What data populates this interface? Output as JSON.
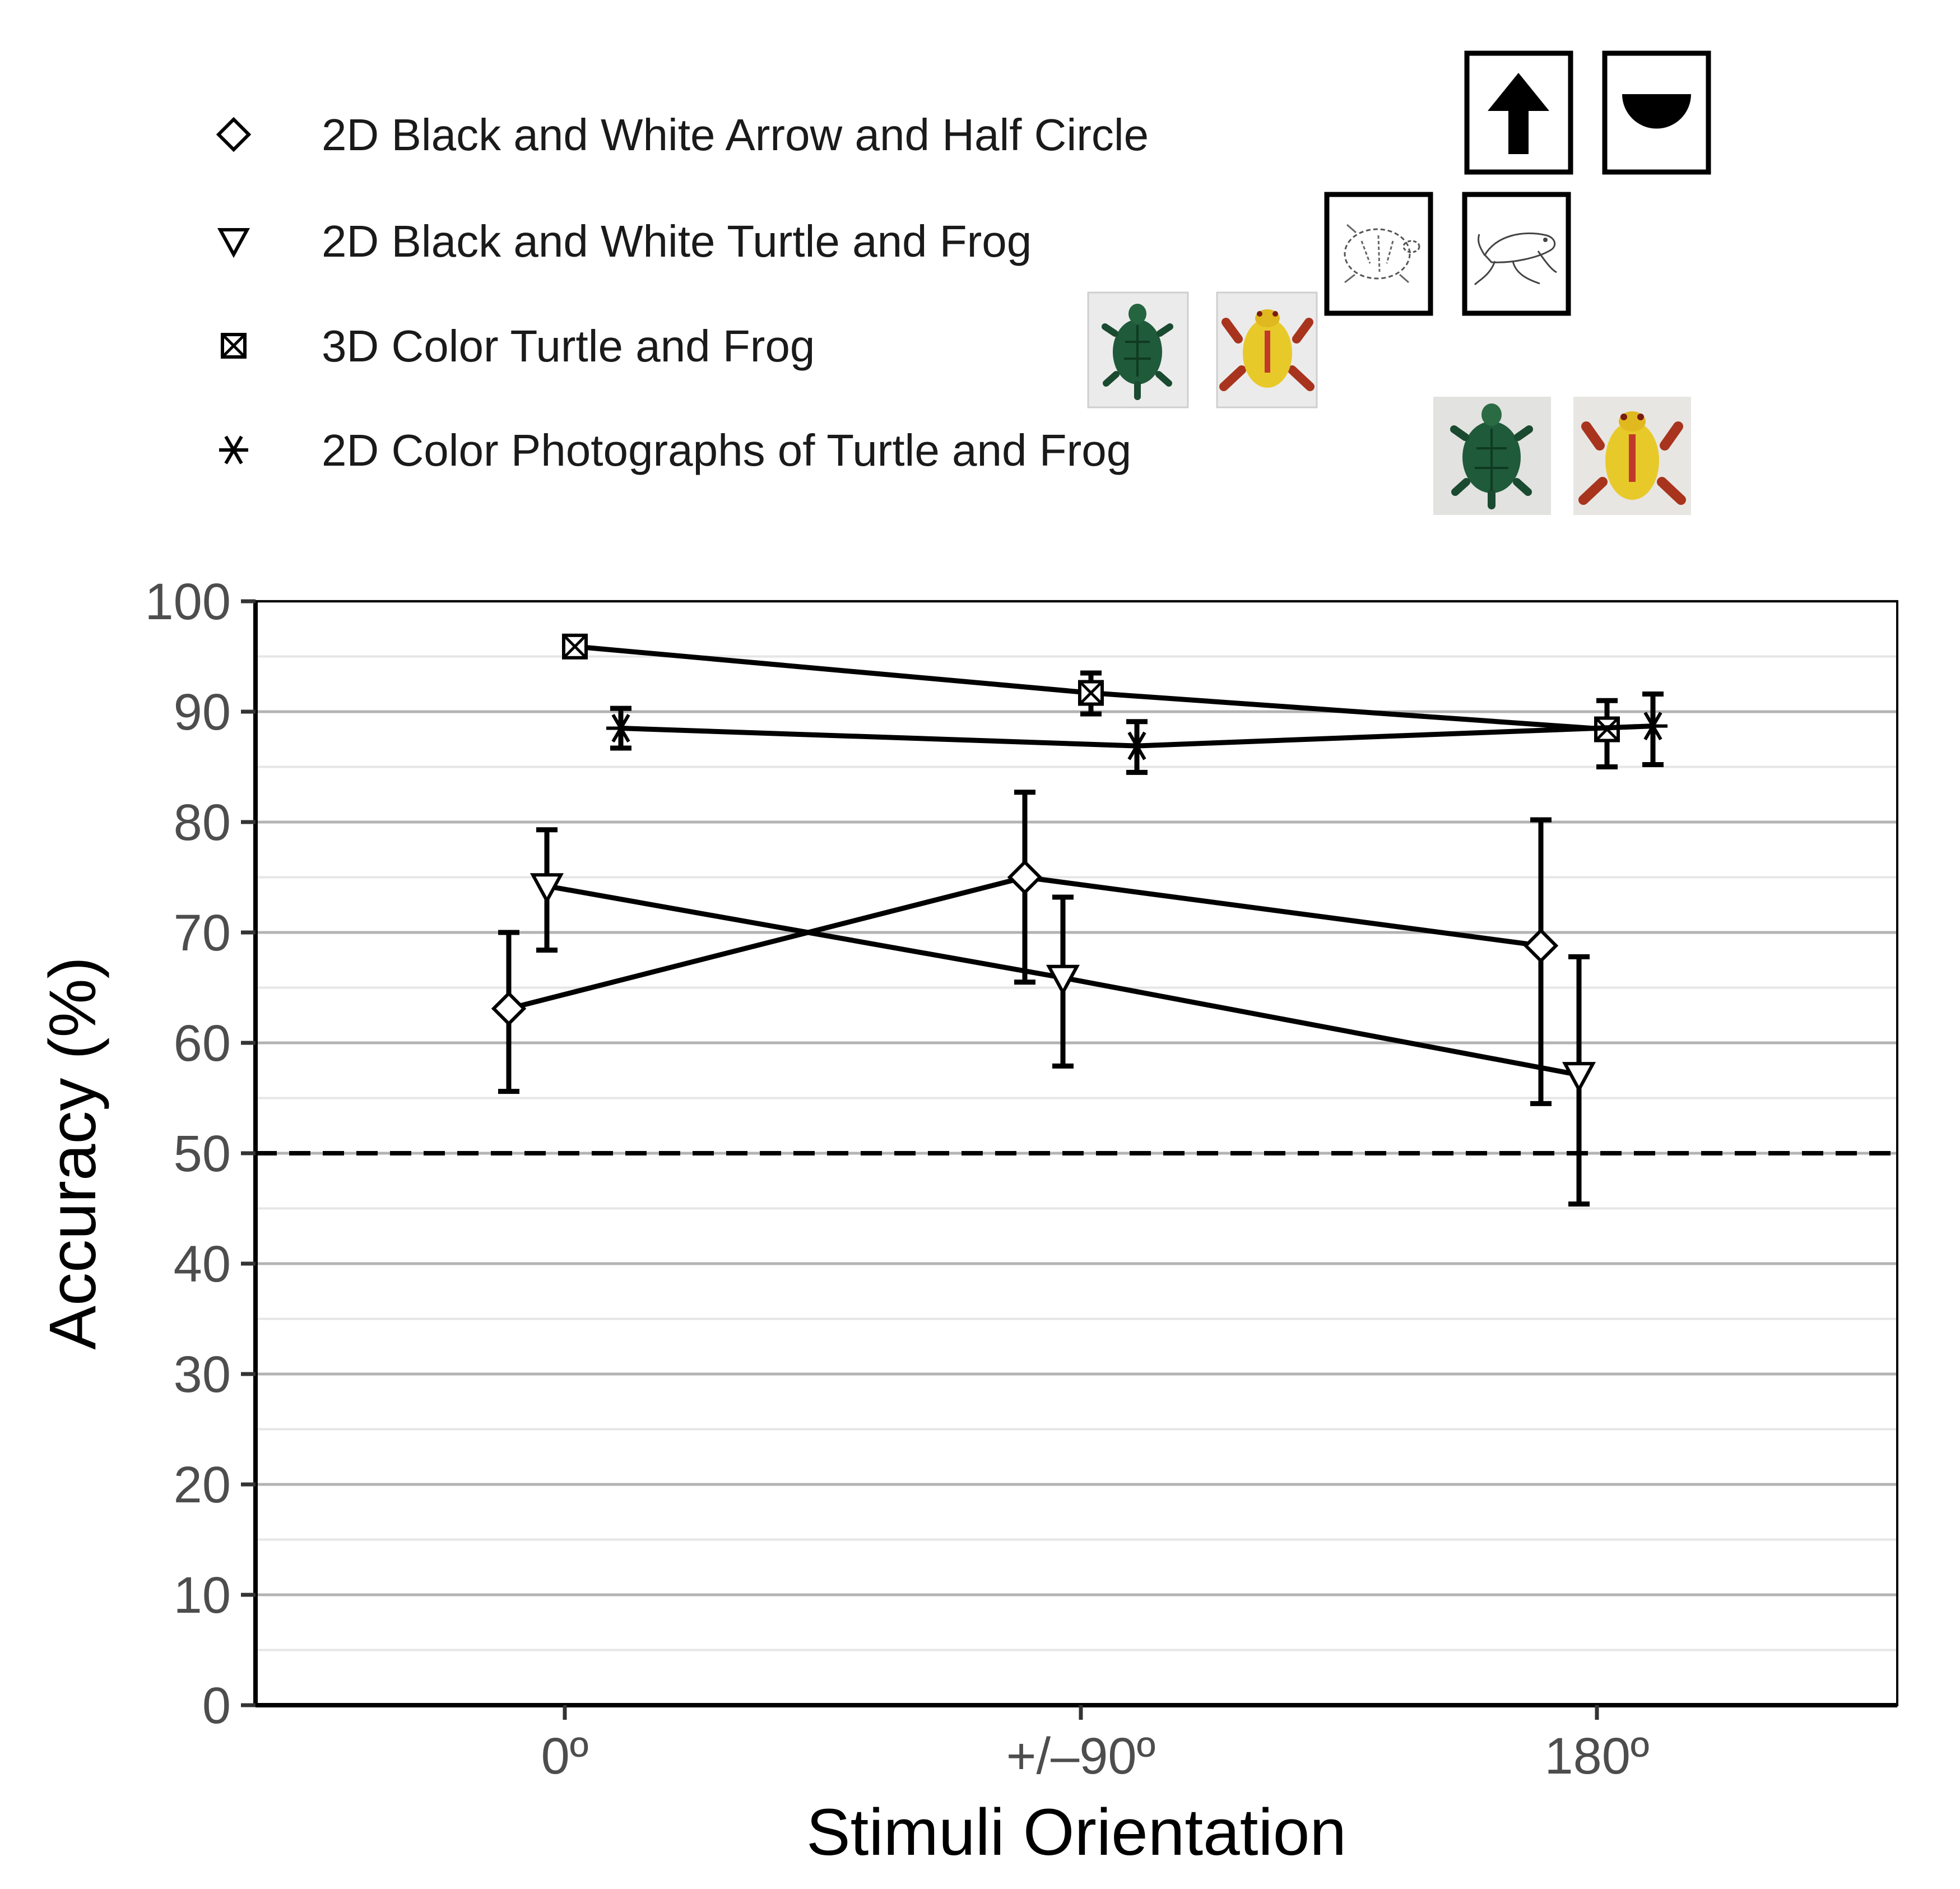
{
  "chart_data": {
    "type": "line",
    "title": "",
    "xlabel": "Stimuli Orientation",
    "ylabel": "Accuracy (%)",
    "categories": [
      "0º",
      "+/–90º",
      "180º"
    ],
    "ylim": [
      0,
      100
    ],
    "yticks": [
      0,
      10,
      20,
      30,
      40,
      50,
      60,
      70,
      80,
      90,
      100
    ],
    "grid": true,
    "chance_line": 50,
    "legend_position": "top",
    "series": [
      {
        "name": "2D Black and White Arrow and Half Circle",
        "marker": "diamond",
        "values": [
          63.1,
          75.0,
          68.8
        ],
        "error_low": [
          55.6,
          65.5,
          54.5
        ],
        "error_high": [
          70.0,
          82.7,
          80.2
        ]
      },
      {
        "name": "2D Black and White Turtle and Frog",
        "marker": "triangle-down",
        "values": [
          74.2,
          65.9,
          57.1
        ],
        "error_low": [
          68.4,
          57.9,
          45.4
        ],
        "error_high": [
          79.3,
          73.2,
          67.8
        ]
      },
      {
        "name": "3D Color Turtle and Frog",
        "marker": "square-x",
        "values": [
          95.9,
          91.7,
          88.4
        ],
        "error_low": [
          95.2,
          89.8,
          85.0
        ],
        "error_high": [
          96.5,
          93.5,
          91.0
        ]
      },
      {
        "name": "2D Color Photographs of Turtle and Frog",
        "marker": "asterisk",
        "values": [
          88.5,
          86.9,
          88.7
        ],
        "error_low": [
          86.7,
          84.5,
          85.2
        ],
        "error_high": [
          90.3,
          89.1,
          91.6
        ]
      }
    ],
    "legend_images": [
      {
        "series": "2D Black and White Arrow and Half Circle",
        "icon": "arrow-up-icon"
      },
      {
        "series": "2D Black and White Arrow and Half Circle",
        "icon": "half-circle-icon"
      },
      {
        "series": "2D Black and White Turtle and Frog",
        "icon": "turtle-line-drawing"
      },
      {
        "series": "2D Black and White Turtle and Frog",
        "icon": "frog-line-drawing"
      },
      {
        "series": "3D Color Turtle and Frog",
        "icon": "turtle-photo"
      },
      {
        "series": "3D Color Turtle and Frog",
        "icon": "frog-photo"
      },
      {
        "series": "2D Color Photographs of Turtle and Frog",
        "icon": "turtle-photo"
      },
      {
        "series": "2D Color Photographs of Turtle and Frog",
        "icon": "frog-photo"
      }
    ]
  },
  "colors": {
    "line": "#000000",
    "grid_major": "#b3b3b3",
    "grid_minor": "#e6e6e6",
    "tick_text": "#4d4d4d",
    "turtle": "#1f5a3a",
    "frog_body": "#e8c92a",
    "frog_limbs": "#a8341e"
  }
}
